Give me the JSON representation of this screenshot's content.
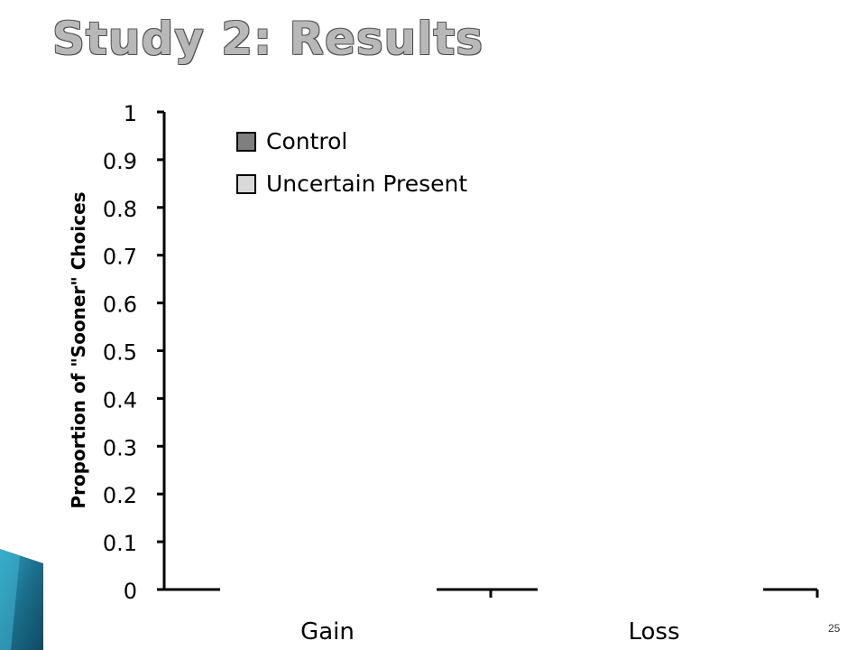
{
  "slide": {
    "title": "Study 2: Results",
    "page_number": "25"
  },
  "chart_data": {
    "type": "bar",
    "categories": [
      "Gain",
      "Loss"
    ],
    "series": [
      {
        "name": "Control",
        "color": "#7f7f7f",
        "values": [
          null,
          null
        ]
      },
      {
        "name": "Uncertain Present",
        "color": "#d9d9d9",
        "values": [
          null,
          null
        ]
      }
    ],
    "ylabel": "Proportion of \"Sooner\" Choices",
    "ylim": [
      0,
      1
    ],
    "yticks": [
      "0",
      "0.1",
      "0.2",
      "0.3",
      "0.4",
      "0.5",
      "0.6",
      "0.7",
      "0.8",
      "0.9",
      "1"
    ],
    "legend_position": "top-left",
    "grid": false
  }
}
